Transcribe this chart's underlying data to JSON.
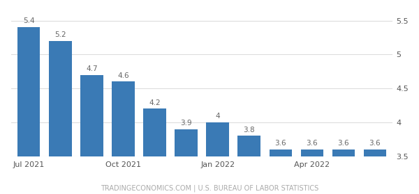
{
  "values": [
    5.4,
    5.2,
    4.7,
    4.6,
    4.2,
    3.9,
    4.0,
    3.8,
    3.6,
    3.6,
    3.6,
    3.6
  ],
  "labels": [
    "5.4",
    "5.2",
    "4.7",
    "4.6",
    "4.2",
    "3.9",
    "4",
    "3.8",
    "3.6",
    "3.6",
    "3.6",
    "3.6"
  ],
  "bar_color": "#3a7ab5",
  "xtick_positions": [
    0,
    3,
    6,
    9
  ],
  "xtick_labels": [
    "Jul 2021",
    "Oct 2021",
    "Jan 2022",
    "Apr 2022"
  ],
  "yticks": [
    3.5,
    4.0,
    4.5,
    5.0,
    5.5
  ],
  "ytick_labels": [
    "3.5",
    "4",
    "4.5",
    "5",
    "5.5"
  ],
  "ylim_bottom": 3.5,
  "ylim_top": 5.65,
  "footer": "TRADINGECONOMICS.COM | U.S. BUREAU OF LABOR STATISTICS",
  "background_color": "#ffffff",
  "grid_color": "#dddddd",
  "bar_label_fontsize": 7.5,
  "bar_label_color": "#666666",
  "axis_label_fontsize": 8.0,
  "footer_fontsize": 7.0,
  "footer_color": "#aaaaaa"
}
